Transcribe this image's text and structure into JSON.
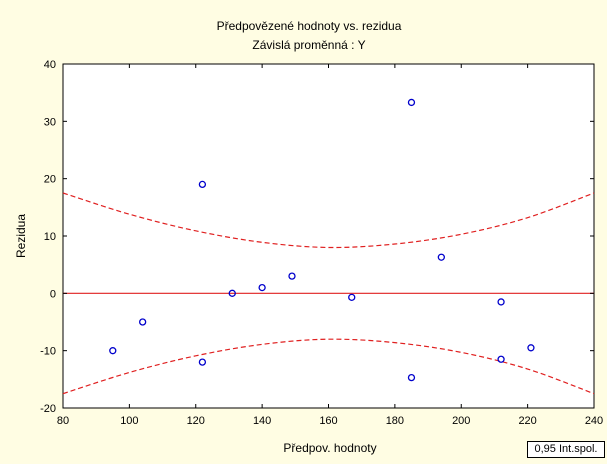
{
  "chart_data": {
    "type": "scatter",
    "title": "Předpovězené hodnoty vs. rezidua",
    "subtitle": "Závislá proměnná :  Y",
    "xlabel": "Předpov. hodnoty",
    "ylabel": "Rezidua",
    "xlim": [
      80,
      240
    ],
    "ylim": [
      -20,
      40
    ],
    "x_ticks": [
      80,
      100,
      120,
      140,
      160,
      180,
      200,
      220,
      240
    ],
    "y_ticks": [
      -20,
      -10,
      0,
      10,
      20,
      30,
      40
    ],
    "grid": false,
    "points": [
      {
        "x": 95,
        "y": -10
      },
      {
        "x": 104,
        "y": -5
      },
      {
        "x": 122,
        "y": 19
      },
      {
        "x": 122,
        "y": -12
      },
      {
        "x": 131,
        "y": 0
      },
      {
        "x": 140,
        "y": 1
      },
      {
        "x": 149,
        "y": 3
      },
      {
        "x": 167,
        "y": -0.7
      },
      {
        "x": 185,
        "y": 33.3
      },
      {
        "x": 185,
        "y": -14.7
      },
      {
        "x": 194,
        "y": 6.3
      },
      {
        "x": 212,
        "y": -1.5
      },
      {
        "x": 212,
        "y": -11.5
      },
      {
        "x": 221,
        "y": -9.5
      }
    ],
    "reference_line": {
      "y": 0,
      "color": "#e02020"
    },
    "confidence_band": {
      "x": [
        80,
        100,
        120,
        140,
        160,
        180,
        200,
        220,
        240
      ],
      "upper": [
        17.5,
        13.8,
        10.9,
        8.9,
        8.0,
        8.6,
        10.3,
        13.2,
        17.5
      ],
      "lower": [
        -17.5,
        -13.8,
        -10.9,
        -8.9,
        -8.0,
        -8.6,
        -10.3,
        -13.2,
        -17.5
      ],
      "color": "#e02020"
    },
    "point_color": "#0000cc",
    "legend": "0,95 Int.spol.",
    "legend_position": "bottom-right"
  }
}
